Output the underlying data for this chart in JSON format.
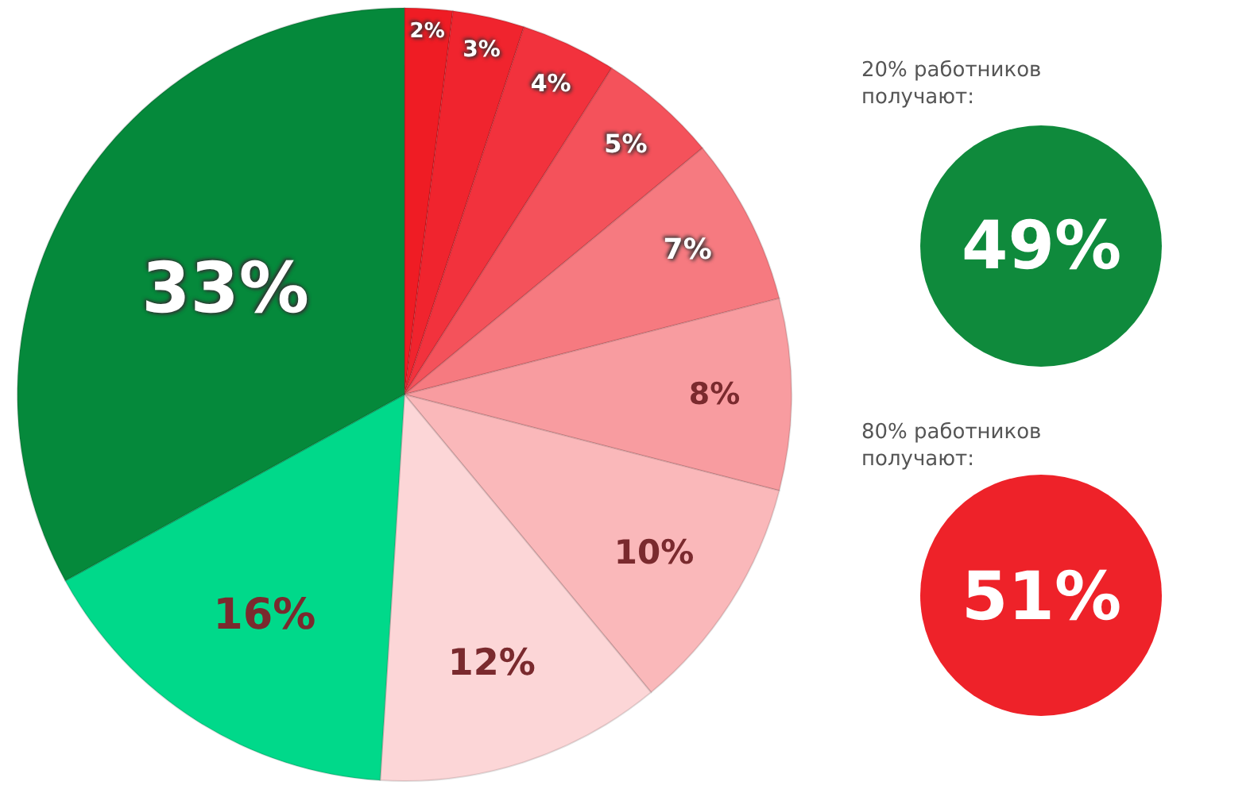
{
  "chart_data": {
    "type": "pie",
    "categories": [
      null,
      null,
      null,
      null,
      null,
      null,
      null,
      null,
      null,
      null
    ],
    "values": [
      2,
      3,
      4,
      5,
      7,
      8,
      10,
      12,
      16,
      33
    ],
    "value_labels": [
      "2%",
      "3%",
      "4%",
      "5%",
      "7%",
      "8%",
      "10%",
      "12%",
      "16%",
      "33%"
    ],
    "colors": [
      "#ef1c24",
      "#f0242e",
      "#f2323d",
      "#f4525b",
      "#f67a80",
      "#f89ca0",
      "#fab8ba",
      "#fcd6d7",
      "#00d98a",
      "#05893b"
    ],
    "annotations": [
      "20% работников\nполучают:",
      "49%",
      "80% работников\nполучают:",
      "51%"
    ]
  }
}
